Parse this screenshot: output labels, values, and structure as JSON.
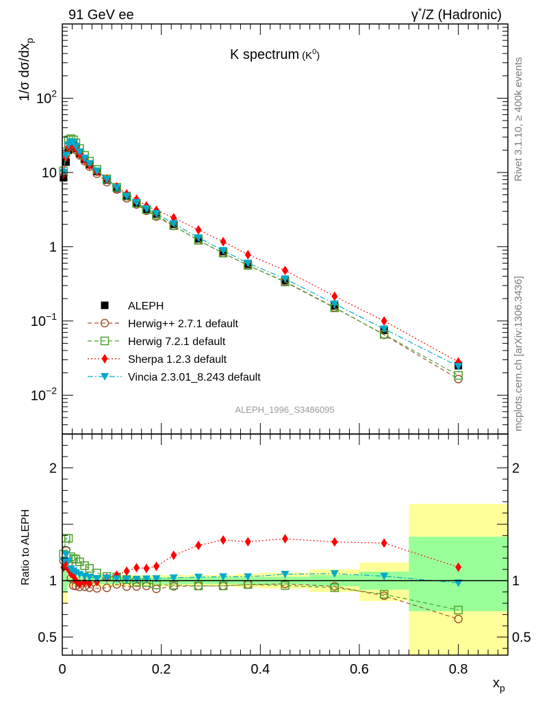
{
  "header": {
    "left": "91 GeV ee",
    "right_prefix": "γ",
    "right_sup": "*",
    "right_suffix": "/Z (Hadronic)"
  },
  "plot_title": {
    "main": "K spectrum",
    "sub": "(K",
    "sub_sup": "0",
    "sub_end": ")"
  },
  "y_axis_top": {
    "label": "1/σ dσ/dx",
    "label_sub": "p"
  },
  "y_axis_bottom": {
    "label": "Ratio to ALEPH"
  },
  "x_axis": {
    "label": "x",
    "label_sub": "p"
  },
  "watermark": "ALEPH_1996_S3486095",
  "side_top": "Rivet 3.1.10, ≥ 400k events",
  "side_bottom": "mcplots.cern.ch [arXiv:1306.3436]",
  "legend": [
    {
      "label": "ALEPH"
    },
    {
      "label": "Herwig++ 2.7.1 default"
    },
    {
      "label": "Herwig 7.2.1 default"
    },
    {
      "label": "Sherpa 1.2.3 default"
    },
    {
      "label": "Vincia 2.3.01_8.243 default"
    }
  ],
  "chart_data": {
    "type": "line",
    "x_range": [
      0,
      0.9
    ],
    "top": {
      "scale": "log",
      "ylim": [
        0.003,
        1000
      ],
      "ticks": [
        {
          "v": 0.01,
          "m": "10",
          "e": "−2"
        },
        {
          "v": 0.1,
          "m": "10",
          "e": "−1"
        },
        {
          "v": 1,
          "m": "1",
          "e": ""
        },
        {
          "v": 10,
          "m": "10",
          "e": ""
        },
        {
          "v": 100,
          "m": "10",
          "e": "2"
        }
      ]
    },
    "bottom": {
      "ylim": [
        0.34,
        2.3
      ],
      "ticks": [
        {
          "v": 0.5,
          "l": "0.5"
        },
        {
          "v": 1,
          "l": "1"
        },
        {
          "v": 2,
          "l": "2"
        }
      ],
      "bands": [
        {
          "x0": 0,
          "x1": 0.01,
          "y": [
            0.8,
            1.2
          ],
          "g": [
            0.9,
            1.1
          ]
        },
        {
          "x0": 0.01,
          "x1": 0.1,
          "y": [
            0.95,
            1.05
          ],
          "g": [
            0.97,
            1.03
          ]
        },
        {
          "x0": 0.1,
          "x1": 0.2,
          "y": [
            0.95,
            1.05
          ],
          "g": [
            0.97,
            1.03
          ]
        },
        {
          "x0": 0.2,
          "x1": 0.3,
          "y": [
            0.95,
            1.05
          ],
          "g": [
            0.97,
            1.03
          ]
        },
        {
          "x0": 0.3,
          "x1": 0.35,
          "y": [
            0.95,
            1.05
          ],
          "g": [
            0.97,
            1.03
          ]
        },
        {
          "x0": 0.35,
          "x1": 0.4,
          "y": [
            0.94,
            1.06
          ],
          "g": [
            0.97,
            1.03
          ]
        },
        {
          "x0": 0.4,
          "x1": 0.5,
          "y": [
            0.93,
            1.07
          ],
          "g": [
            0.965,
            1.035
          ]
        },
        {
          "x0": 0.5,
          "x1": 0.6,
          "y": [
            0.9,
            1.1
          ],
          "g": [
            0.95,
            1.05
          ]
        },
        {
          "x0": 0.6,
          "x1": 0.7,
          "y": [
            0.82,
            1.16
          ],
          "g": [
            0.92,
            1.08
          ]
        },
        {
          "x0": 0.7,
          "x1": 0.9,
          "y": [
            0.34,
            1.68
          ],
          "g": [
            0.73,
            1.39
          ]
        }
      ]
    },
    "x_ticks": [
      0,
      0.2,
      0.4,
      0.6,
      0.8
    ],
    "x": [
      0.0025,
      0.0075,
      0.0125,
      0.0175,
      0.0225,
      0.0275,
      0.035,
      0.045,
      0.055,
      0.07,
      0.09,
      0.11,
      0.13,
      0.15,
      0.17,
      0.19,
      0.225,
      0.275,
      0.325,
      0.375,
      0.45,
      0.55,
      0.65,
      0.8
    ],
    "series": [
      {
        "name": "ALEPH",
        "color": "#000000",
        "marker": "square-filled",
        "line": "none",
        "values": [
          8.5,
          13.8,
          20.0,
          23.5,
          23.0,
          21.0,
          18.0,
          15.0,
          12.8,
          10.3,
          7.9,
          6.1,
          4.75,
          3.9,
          3.2,
          2.75,
          2.0,
          1.28,
          0.86,
          0.58,
          0.35,
          0.16,
          0.075,
          0.025
        ]
      },
      {
        "name": "Herwig++ 2.7.1 default",
        "color": "#a0522d",
        "marker": "circle-open",
        "line": "dashed",
        "values": [
          10.0,
          17.5,
          23.0,
          24.0,
          22.0,
          20.0,
          17.0,
          14.2,
          12.0,
          9.6,
          7.4,
          5.9,
          4.5,
          3.7,
          3.05,
          2.55,
          1.9,
          1.22,
          0.82,
          0.56,
          0.34,
          0.152,
          0.065,
          0.0165
        ]
      },
      {
        "name": "Herwig 7.2.1 default",
        "color": "#4aa02c",
        "marker": "square-open",
        "line": "dashed",
        "values": [
          10.5,
          19.0,
          27.5,
          28.5,
          27.5,
          25.0,
          21.0,
          17.0,
          14.2,
          11.0,
          8.2,
          6.3,
          4.8,
          3.85,
          3.15,
          2.65,
          1.92,
          1.22,
          0.82,
          0.56,
          0.335,
          0.15,
          0.066,
          0.0185
        ]
      },
      {
        "name": "Sherpa 1.2.3 default",
        "color": "#ff0000",
        "marker": "diamond-filled",
        "line": "dotted",
        "values": [
          9.5,
          16.0,
          22.0,
          25.0,
          24.0,
          21.0,
          17.5,
          14.8,
          12.5,
          10.2,
          8.1,
          6.4,
          5.15,
          4.35,
          3.55,
          3.1,
          2.45,
          1.68,
          1.17,
          0.78,
          0.48,
          0.215,
          0.1,
          0.028
        ]
      },
      {
        "name": "Vincia 2.3.01_8.243 default",
        "color": "#00aacc",
        "marker": "triangle-down-filled",
        "line": "dashdot",
        "values": [
          10.0,
          17.0,
          23.5,
          26.0,
          25.0,
          22.5,
          19.0,
          15.6,
          13.2,
          10.5,
          8.1,
          6.2,
          4.8,
          3.95,
          3.25,
          2.8,
          2.05,
          1.32,
          0.89,
          0.6,
          0.37,
          0.17,
          0.078,
          0.0245
        ]
      }
    ]
  }
}
